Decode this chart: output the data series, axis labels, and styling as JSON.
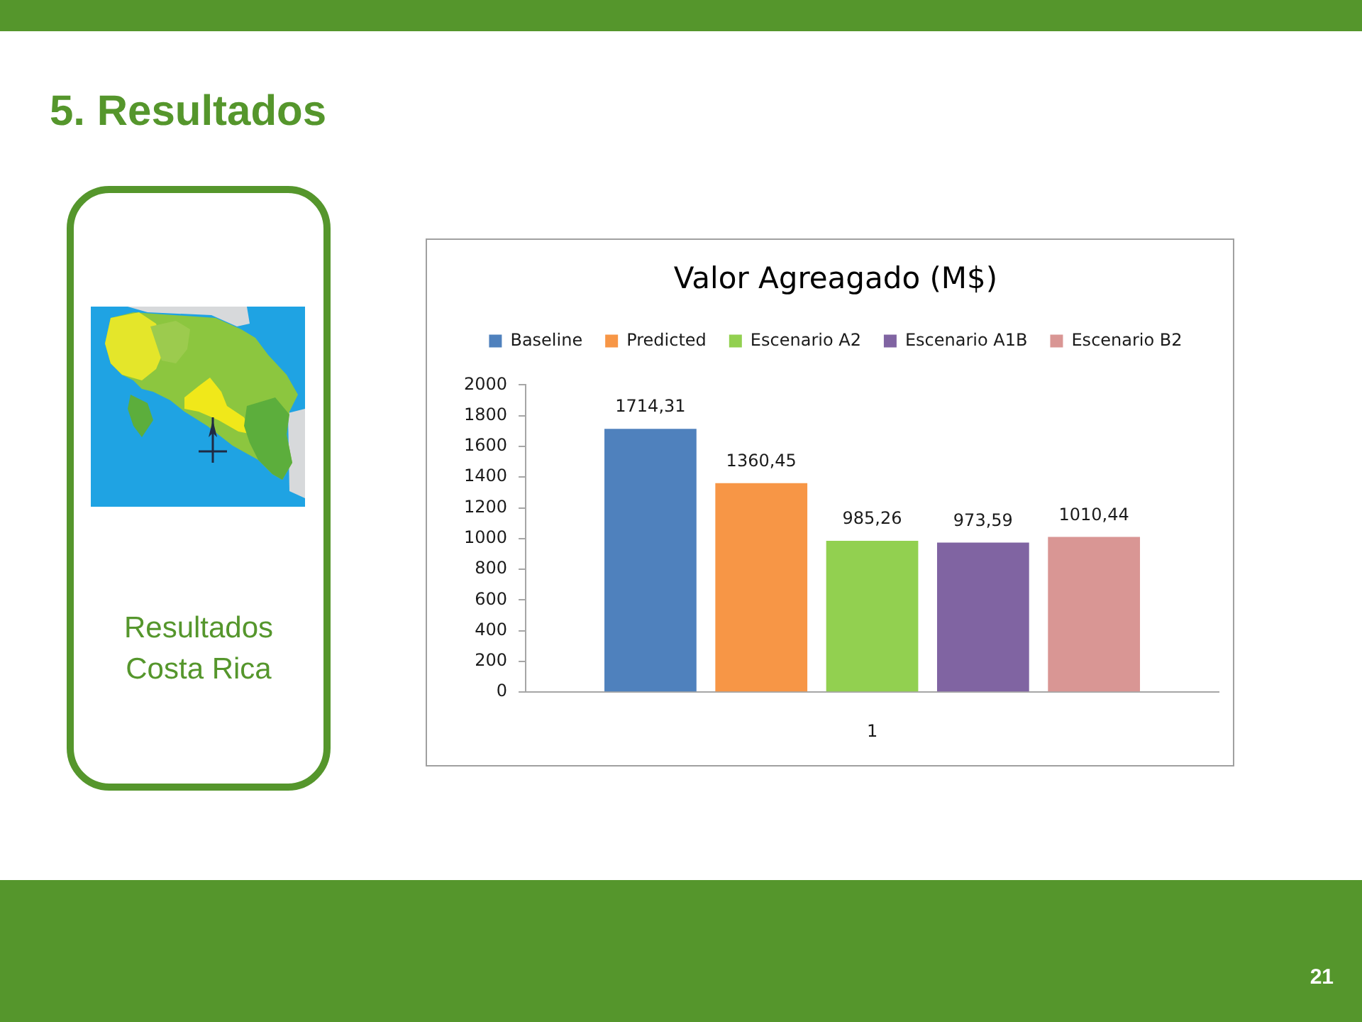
{
  "chart_data": {
    "type": "bar",
    "title": "Valor Agreagado (M$)",
    "categories": [
      "1"
    ],
    "series": [
      {
        "name": "Baseline",
        "color": "#4f81bd",
        "values": [
          1714.31
        ],
        "value_labels": [
          "1714,31"
        ]
      },
      {
        "name": "Predicted",
        "color": "#f79646",
        "values": [
          1360.45
        ],
        "value_labels": [
          "1360,45"
        ]
      },
      {
        "name": "Escenario A2",
        "color": "#92d050",
        "values": [
          985.26
        ],
        "value_labels": [
          "985,26"
        ]
      },
      {
        "name": "Escenario A1B",
        "color": "#8064a2",
        "values": [
          973.59
        ],
        "value_labels": [
          "973,59"
        ]
      },
      {
        "name": "Escenario B2",
        "color": "#d99694",
        "values": [
          1010.44
        ],
        "value_labels": [
          "1010,44"
        ]
      }
    ],
    "ylim": [
      0,
      2000
    ],
    "yticks": [
      0,
      200,
      400,
      600,
      800,
      1000,
      1200,
      1400,
      1600,
      1800,
      2000
    ],
    "grid": false,
    "legend": "top",
    "annotations": [
      "5. Resultados",
      "Resultados Costa Rica",
      "21"
    ]
  }
}
